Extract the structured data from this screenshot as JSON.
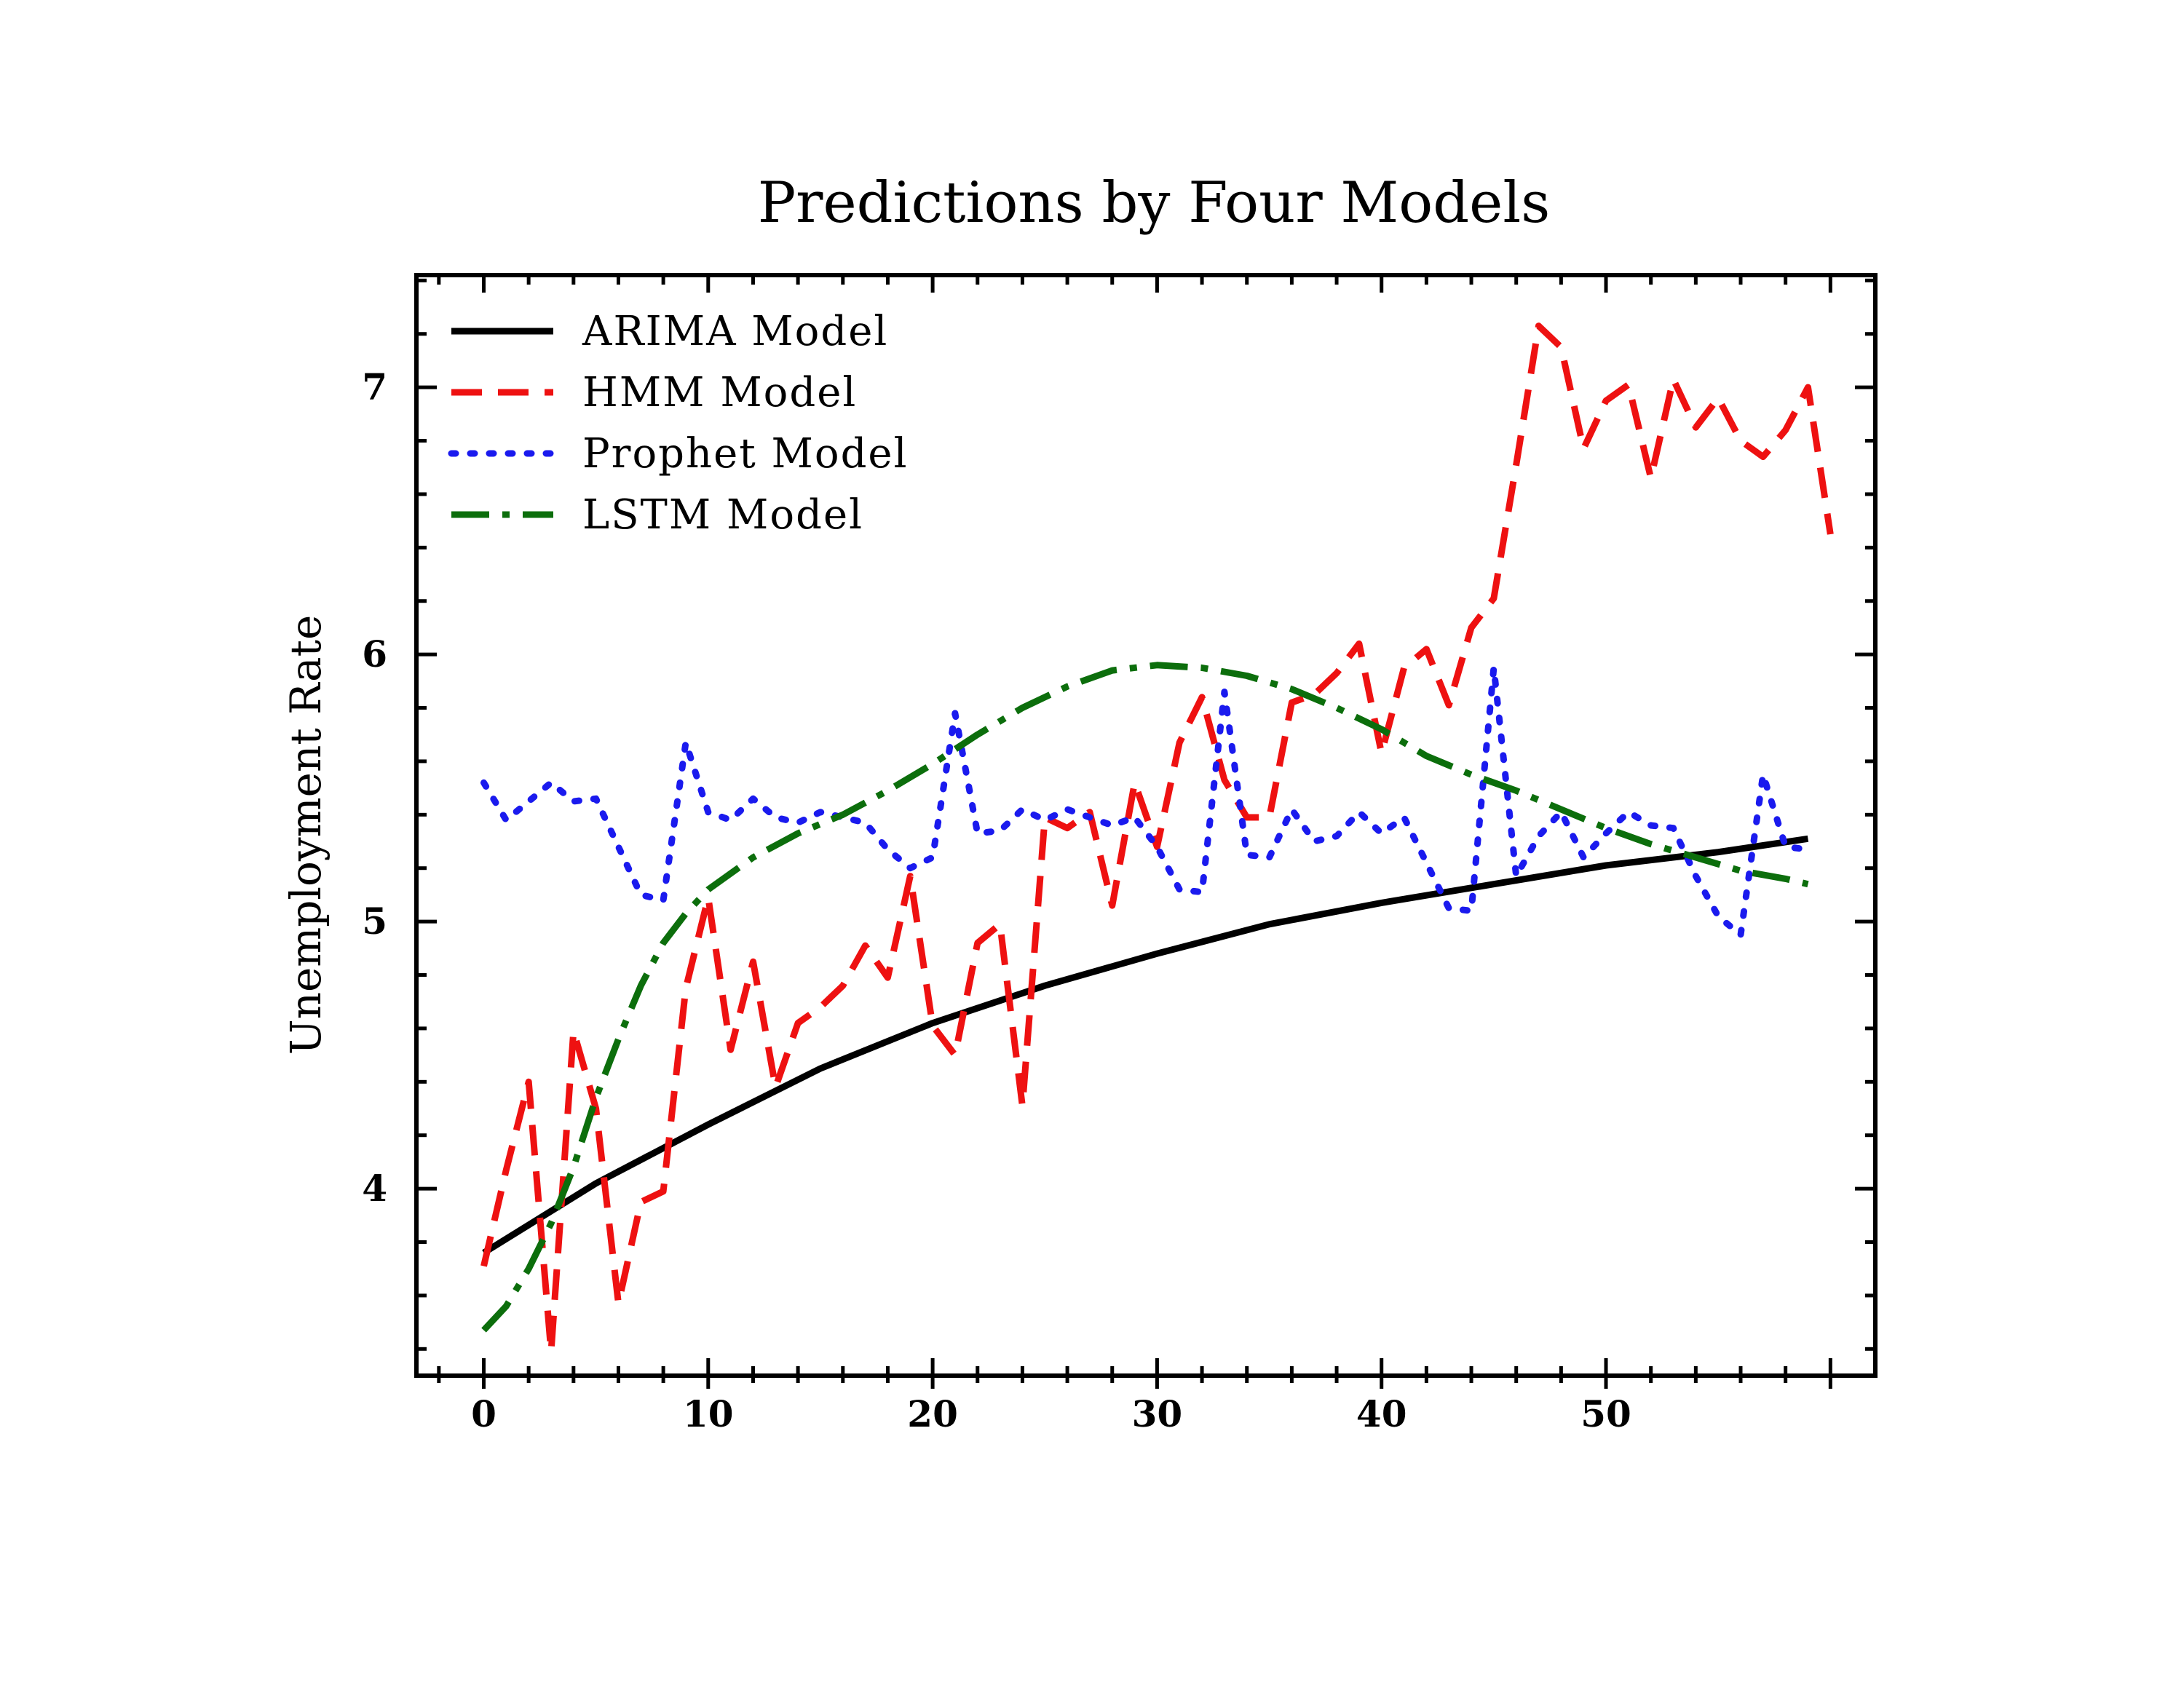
{
  "chart_data": {
    "type": "line",
    "title": "Predictions by Four Models",
    "xlabel": "",
    "ylabel": "Unemployment Rate",
    "xlim": [
      -3,
      62
    ],
    "ylim": [
      3.3,
      7.42
    ],
    "x_ticks": [
      0,
      10,
      20,
      30,
      40,
      50
    ],
    "y_ticks": [
      4,
      5,
      6,
      7
    ],
    "grid": false,
    "legend_position": "top-left",
    "series": [
      {
        "name": "ARIMA Model",
        "color": "#000000",
        "style": "solid",
        "x": [
          0,
          5,
          10,
          15,
          20,
          25,
          30,
          35,
          40,
          45,
          50,
          55,
          59
        ],
        "values": [
          3.76,
          4.02,
          4.24,
          4.45,
          4.62,
          4.76,
          4.88,
          4.99,
          5.07,
          5.14,
          5.21,
          5.26,
          5.31
        ]
      },
      {
        "name": "HMM Model",
        "color": "#ee1111",
        "style": "dashed",
        "x": [
          0,
          1,
          2,
          3,
          4,
          5,
          6,
          7,
          8,
          9,
          10,
          11,
          12,
          13,
          14,
          15,
          16,
          17,
          18,
          19,
          20,
          21,
          22,
          23,
          24,
          25,
          26,
          27,
          28,
          29,
          30,
          31,
          32,
          33,
          34,
          35,
          36,
          37,
          38,
          39,
          40,
          41,
          42,
          43,
          44,
          45,
          46,
          47,
          48,
          49,
          50,
          51,
          52,
          53,
          54,
          55,
          56,
          57,
          58,
          59,
          60
        ],
        "values": [
          3.71,
          4.07,
          4.4,
          3.39,
          4.59,
          4.3,
          3.57,
          3.95,
          3.99,
          4.75,
          5.09,
          4.52,
          4.85,
          4.38,
          4.62,
          4.68,
          4.76,
          4.91,
          4.79,
          5.17,
          4.61,
          4.5,
          4.92,
          4.99,
          4.31,
          5.39,
          5.35,
          5.41,
          5.06,
          5.52,
          5.28,
          5.67,
          5.84,
          5.53,
          5.39,
          5.39,
          5.82,
          5.85,
          5.93,
          6.04,
          5.63,
          5.95,
          6.02,
          5.81,
          6.1,
          6.21,
          6.71,
          7.23,
          7.15,
          6.77,
          6.95,
          7.01,
          6.66,
          7.03,
          6.85,
          6.96,
          6.8,
          6.74,
          6.84,
          7.0,
          6.45
        ]
      },
      {
        "name": "Prophet Model",
        "color": "#1a1aee",
        "style": "dotted",
        "x": [
          0,
          1,
          2,
          3,
          4,
          5,
          6,
          7,
          8,
          9,
          10,
          11,
          12,
          13,
          14,
          15,
          16,
          17,
          18,
          19,
          20,
          21,
          22,
          23,
          24,
          25,
          26,
          27,
          28,
          29,
          30,
          31,
          32,
          33,
          34,
          35,
          36,
          37,
          38,
          39,
          40,
          41,
          42,
          43,
          44,
          45,
          46,
          47,
          48,
          49,
          50,
          51,
          52,
          53,
          54,
          55,
          56,
          57,
          58,
          59
        ],
        "values": [
          5.52,
          5.38,
          5.45,
          5.52,
          5.45,
          5.46,
          5.28,
          5.1,
          5.08,
          5.67,
          5.41,
          5.38,
          5.46,
          5.39,
          5.37,
          5.41,
          5.39,
          5.37,
          5.27,
          5.2,
          5.24,
          5.78,
          5.33,
          5.34,
          5.42,
          5.38,
          5.42,
          5.39,
          5.36,
          5.39,
          5.28,
          5.12,
          5.11,
          5.86,
          5.25,
          5.24,
          5.42,
          5.3,
          5.32,
          5.41,
          5.33,
          5.39,
          5.22,
          5.05,
          5.04,
          5.95,
          5.17,
          5.32,
          5.41,
          5.24,
          5.33,
          5.41,
          5.36,
          5.35,
          5.17,
          5.02,
          4.95,
          5.55,
          5.28,
          5.27
        ]
      },
      {
        "name": "LSTM Model",
        "color": "#0c6e0c",
        "style": "dashdot",
        "x": [
          0,
          1,
          2,
          3,
          4,
          5,
          6,
          7,
          8,
          9,
          10,
          12,
          14,
          16,
          18,
          20,
          22,
          24,
          26,
          28,
          30,
          32,
          34,
          36,
          38,
          40,
          42,
          44,
          46,
          48,
          50,
          52,
          54,
          56,
          58,
          59
        ],
        "values": [
          3.47,
          3.56,
          3.7,
          3.87,
          4.08,
          4.34,
          4.56,
          4.76,
          4.92,
          5.03,
          5.12,
          5.24,
          5.33,
          5.4,
          5.49,
          5.59,
          5.7,
          5.8,
          5.88,
          5.94,
          5.96,
          5.95,
          5.92,
          5.87,
          5.8,
          5.72,
          5.62,
          5.55,
          5.49,
          5.42,
          5.35,
          5.29,
          5.24,
          5.19,
          5.16,
          5.14
        ]
      }
    ]
  }
}
